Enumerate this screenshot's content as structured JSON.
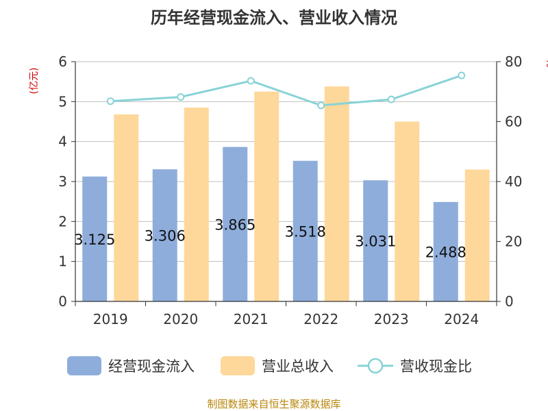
{
  "chart_data": {
    "type": "bar",
    "title": "历年经营现金流入、营业收入情况",
    "left_unit": "(亿元)",
    "right_unit": "%",
    "categories": [
      "2019",
      "2020",
      "2021",
      "2022",
      "2023",
      "2024"
    ],
    "y_left": {
      "min": 0,
      "max": 6,
      "ticks": [
        "0",
        "1",
        "2",
        "3",
        "4",
        "5",
        "6"
      ]
    },
    "y_right": {
      "min": 0,
      "max": 80,
      "ticks": [
        "0",
        "20",
        "40",
        "60",
        "80"
      ]
    },
    "grid": true,
    "legend_position": "bottom",
    "series": [
      {
        "name": "经营现金流入",
        "type": "bar",
        "axis": "left",
        "color": "#8eaddb",
        "values": [
          3.125,
          3.306,
          3.865,
          3.518,
          3.031,
          2.488
        ],
        "labels": [
          "3.125",
          "3.306",
          "3.865",
          "3.518",
          "3.031",
          "2.488"
        ]
      },
      {
        "name": "营业总收入",
        "type": "bar",
        "axis": "left",
        "color": "#fed89a",
        "values": [
          4.68,
          4.85,
          5.25,
          5.38,
          4.5,
          3.3
        ]
      },
      {
        "name": "营收现金比",
        "type": "line",
        "axis": "right",
        "color": "#88d3d6",
        "values": [
          66.8,
          68.2,
          73.6,
          65.4,
          67.4,
          75.4
        ]
      }
    ]
  },
  "footer": "制图数据来自恒生聚源数据库"
}
